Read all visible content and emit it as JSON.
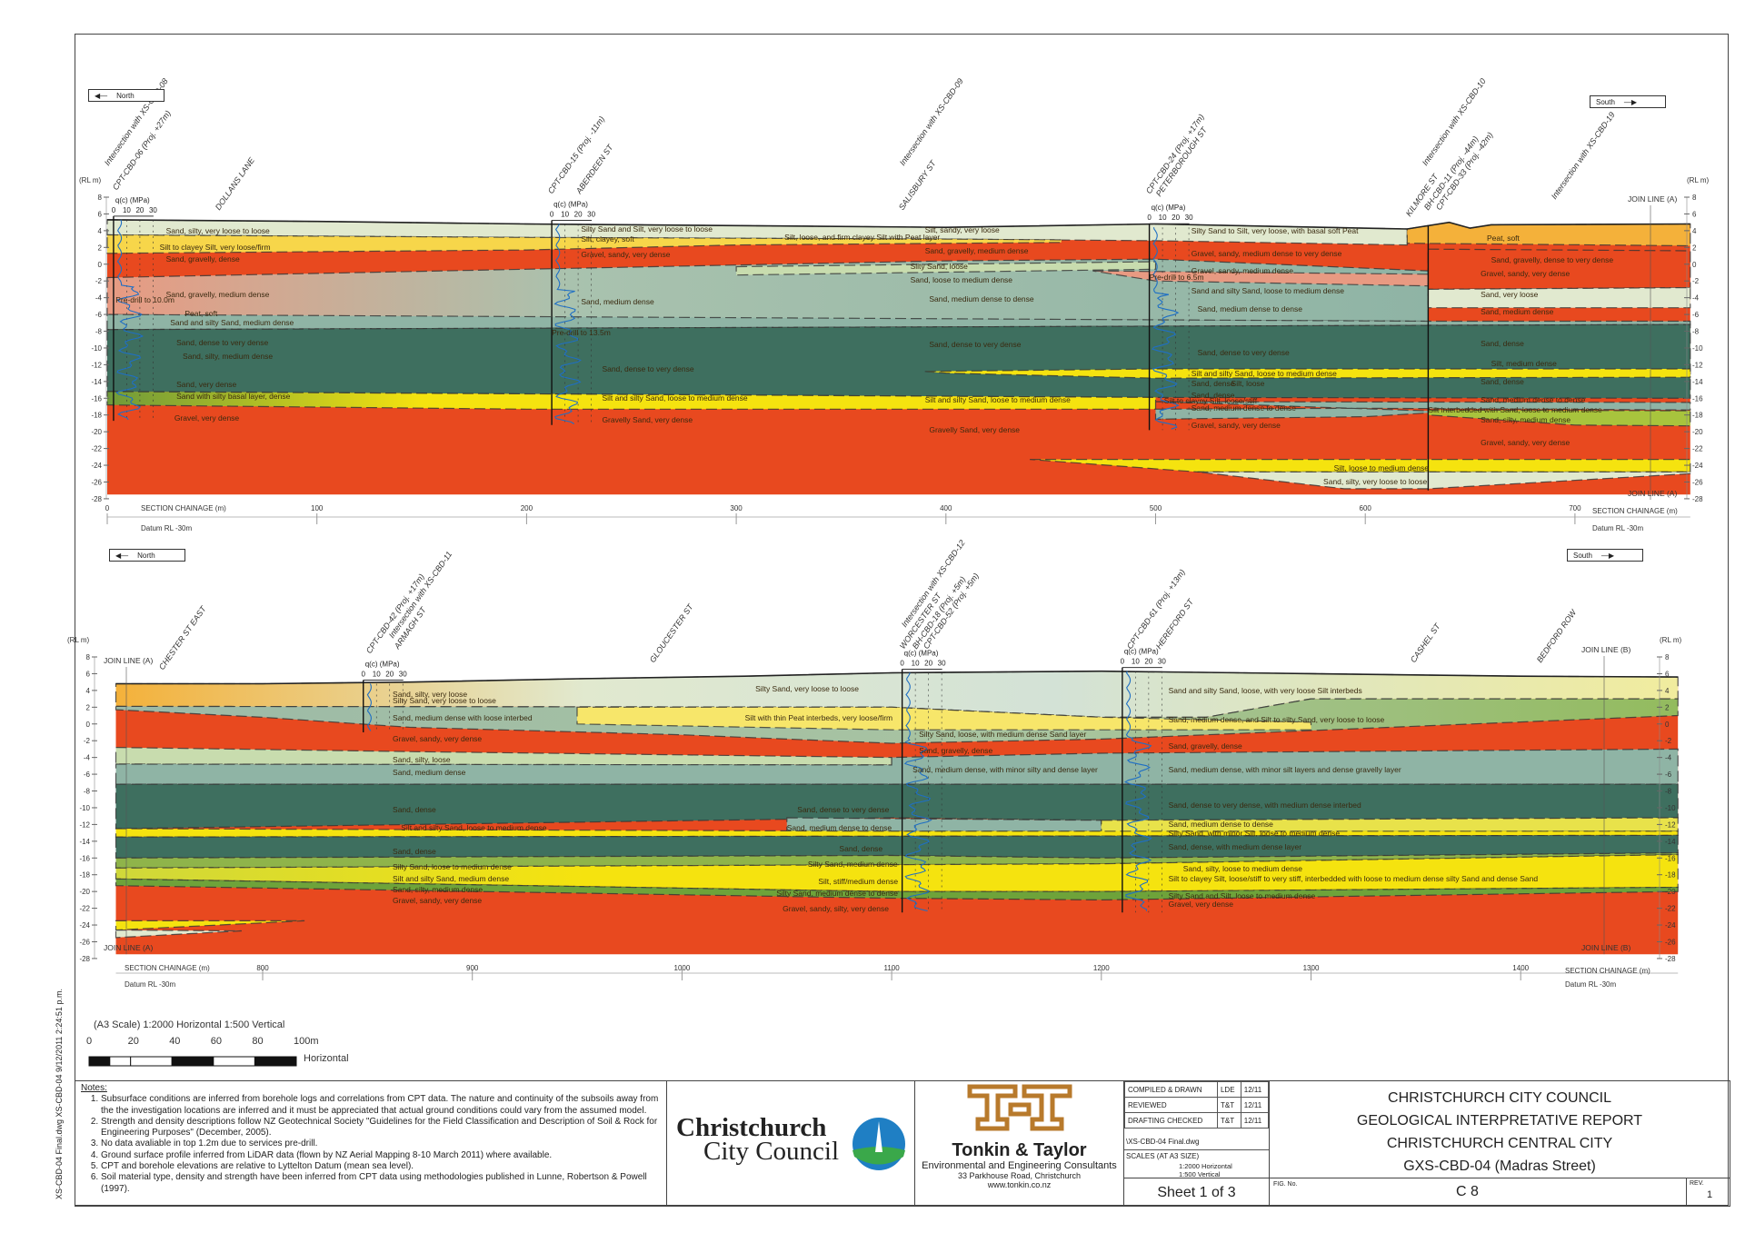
{
  "drawing_file_stamp": "XS-CBD-04 Final.dwg XS-CBD-04 9/12/2011 2:24:51 p.m.",
  "colors": {
    "gravel": "#e8491f",
    "pale_sand": "#e1e9cf",
    "peat": "#f4b13a",
    "silt_yellow": "#f5e30f",
    "silt_light": "#f7d64a",
    "teal_medium": "#8fb4a5",
    "teal_dense": "#3e6f5f",
    "green": "#8fb44a",
    "cpt_trace": "#1f6fc4"
  },
  "direction": {
    "north": "North",
    "south": "South"
  },
  "axis": {
    "rl_label": "(RL m)",
    "rl_ticks": [
      "8",
      "6",
      "4",
      "2",
      "0",
      "-2",
      "-4",
      "-6",
      "-8",
      "-10",
      "-12",
      "-14",
      "-16",
      "-18",
      "-20",
      "-22",
      "-24",
      "-26",
      "-28"
    ],
    "chainage_label": "SECTION CHAINAGE (m)",
    "datum": "Datum RL -30m",
    "qc_label": "q(c) (MPa)",
    "qc_ticks": [
      "0",
      "10",
      "20",
      "30"
    ]
  },
  "sections": [
    {
      "chainage_ticks": [
        "0",
        "100",
        "200",
        "300",
        "400",
        "500",
        "600",
        "700"
      ],
      "annotations": [
        "Intersection with XS-CBD-08",
        "CPT-CBD-06 (Proj. +27m)",
        "DOLLANS LANE",
        "CPT-CBD-15 (Proj. -11m)",
        "ABERDEEN ST",
        "Intersection with XS-CBD-09",
        "SALISBURY ST",
        "CPT-CBD-24 (Proj. +17m)",
        "PETERBOROUGH ST",
        "Intersection with XS-CBD-10",
        "KILMORE ST",
        "BH-CBD-11 (Proj. -44m)",
        "CPT-CBD-33 (Proj. -42m)",
        "Intersection with XS-CBD-19"
      ],
      "join_lines": [
        "JOIN LINE (A)",
        "JOIN LINE (A)"
      ],
      "labels": [
        "Sand, silty, very loose to loose",
        "Silt to clayey Silt, very loose/firm",
        "Sand, gravelly, dense",
        "Sand, gravelly, medium dense",
        "Pre-drill to 10.0m",
        "Peat, soft",
        "Sand and silty Sand, medium dense",
        "Sand, dense to very dense",
        "Sand, silty, medium dense",
        "Sand, very dense",
        "Sand with silty basal layer, dense",
        "Gravel, very dense",
        "Silty Sand and Silt, very loose to loose",
        "Silt, clayey, soft",
        "Silt, loose, and firm clayey Silt with Peat layer",
        "Gravel, sandy, very dense",
        "Sand, medium dense",
        "Pre-drill to 13.5m",
        "Sand, dense to very dense",
        "Silt and silty Sand, loose to medium dense",
        "Gravelly Sand, very dense",
        "Silt, sandy, very loose",
        "Sand, gravelly, medium dense",
        "Silty Sand, loose",
        "Sand, loose to medium dense",
        "Sand, medium dense to dense",
        "Sand, dense to very dense",
        "Silt and silty Sand, loose to medium dense",
        "Gravelly Sand, very dense",
        "Silty Sand to Silt, very loose, with basal soft Peat",
        "Gravel, sandy, medium dense to very dense",
        "Pre-drill to 6.5m",
        "Gravel, sandy, medium dense",
        "Sand and silty Sand, loose to medium dense",
        "Sand, medium dense to dense",
        "Sand, dense to very dense",
        "Silt and silty Sand, loose to medium dense",
        "Sand, dense",
        "Silt, loose",
        "Sand, dense",
        "Silt to clayey Silt, loose/stiff",
        "Sand, medium dense to dense",
        "Gravel, sandy, very dense",
        "Peat, soft",
        "Sand, gravelly, dense to very dense",
        "Gravel, sandy, very dense",
        "Sand, very loose",
        "Sand, medium dense",
        "Sand, dense",
        "Silt, medium dense",
        "Sand, dense",
        "Sand, medium dense to dense",
        "Silt interbedded with Sand, loose to medium dense",
        "Sand, silty, medium dense",
        "Gravel, sandy, very dense",
        "Silt, loose to medium dense",
        "Sand, silty, very loose to loose"
      ]
    },
    {
      "chainage_ticks": [
        "800",
        "900",
        "1000",
        "1100",
        "1200",
        "1300",
        "1400"
      ],
      "annotations": [
        "CHESTER ST EAST",
        "CPT-CBD-42 (Proj. +17m)",
        "Intersection with XS-CBD-11",
        "ARMAGH ST",
        "GLOUCESTER ST",
        "Intersection with XS-CBD-12",
        "WORCESTER ST",
        "BH-CBD-18 (Proj. +5m)",
        "CPT-CBD-52 (Proj. +5m)",
        "CPT-CBD-61 (Proj. +13m)",
        "HEREFORD ST",
        "CASHEL ST",
        "BEDFORD ROW"
      ],
      "join_lines": [
        "JOIN LINE (A)",
        "JOIN LINE (B)",
        "JOIN LINE (A)",
        "JOIN LINE (B)"
      ],
      "labels": [
        "Sand, silty, very loose",
        "Silty Sand, very loose to loose",
        "Sand, medium dense with loose interbed",
        "Silt with thin Peat interbeds, very loose/firm",
        "Silty Sand, very loose to loose",
        "Gravel, sandy, very dense",
        "Sand, silty, loose",
        "Sand, medium dense",
        "Sand, dense",
        "Silt and silty Sand, loose to medium dense",
        "Sand, dense",
        "Silty Sand, loose to medium dense",
        "Silt and silty Sand, medium dense",
        "Sand, silty, medium dense",
        "Gravel, sandy, very dense",
        "Sand, dense to very dense",
        "Sand, medium dense to dense",
        "Sand, dense",
        "Silty Sand, medium dense",
        "Silt, stiff/medium dense",
        "Silty Sand, medium dense to dense",
        "Gravel, sandy, silty, very dense",
        "Silty Sand, loose, with medium dense Sand layer",
        "Sand, gravelly, dense",
        "Sand, medium dense, with minor silty and dense layer",
        "Sand and silty Sand, loose, with very loose Silt interbeds",
        "Sand, medium dense, and Silt to silty Sand, very loose to loose",
        "Sand, gravelly, dense",
        "Sand, medium dense, with minor silt layers and dense gravelly layer",
        "Sand, dense to very dense, with medium dense interbed",
        "Sand, medium dense to dense",
        "Silty Sand, with minor Silt, loose to medium dense",
        "Sand, dense, with medium dense layer",
        "Sand, silty, loose to medium dense",
        "Silt to clayey Silt, loose/stiff to very stiff, interbedded with loose to medium dense silty Sand and dense Sand",
        "Silty Sand and Silt, loose to medium dense",
        "Gravel, very dense"
      ]
    }
  ],
  "scale": {
    "title": "(A3 Scale)   1:2000 Horizontal   1:500 Vertical",
    "ticks": [
      "0",
      "20",
      "40",
      "60",
      "80",
      "100m"
    ],
    "label": "Horizontal"
  },
  "notes": {
    "heading": "Notes:",
    "items": [
      "Subsurface conditions are inferred from borehole logs and correlations from CPT data. The nature and continuity of the subsoils away from the the investigation locations are inferred and it must be appreciated that actual ground conditions could vary from the assumed model.",
      "Strength and density descriptions follow NZ Geotechnical Society \"Guidelines for the Field Classification and Description of Soil & Rock for Engineering Purposes\" (December, 2005).",
      "No data avaliable in top 1.2m due to services pre-drill.",
      "Ground surface profile inferred from LiDAR data (flown by NZ Aerial Mapping 8-10 March 2011) where available.",
      "CPT and borehole elevations are relative to Lyttelton Datum (mean sea level).",
      "Soil material type, density and strength have been inferred from CPT data using methodologies published in Lunne, Robertson & Powell (1997)."
    ]
  },
  "council": {
    "line1": "Christchurch",
    "line2": "City Council"
  },
  "consultant": {
    "logo": "T+T",
    "name": "Tonkin & Taylor",
    "tagline": "Environmental and Engineering Consultants",
    "address": "33 Parkhouse Road, Christchurch",
    "web": "www.tonkin.co.nz"
  },
  "signoff": [
    {
      "role": "COMPILED & DRAWN",
      "by": "LDE",
      "date": "12/11"
    },
    {
      "role": "REVIEWED",
      "by": "T&T",
      "date": "12/11"
    },
    {
      "role": "DRAFTING CHECKED",
      "by": "T&T",
      "date": "12/11"
    }
  ],
  "file": "\\XS-CBD-04 Final.dwg",
  "scales": {
    "heading": "SCALES (AT A3 SIZE)",
    "h": "1:2000 Horizontal",
    "v": "1:500  Vertical"
  },
  "sheet": "Sheet 1 of 3",
  "title": {
    "client": "CHRISTCHURCH CITY COUNCIL",
    "report": "GEOLOGICAL INTERPRETATIVE REPORT",
    "area": "CHRISTCHURCH CENTRAL CITY",
    "section": "GXS-CBD-04 (Madras Street)"
  },
  "fig": {
    "label": "FIG. No.",
    "value": "C 8"
  },
  "rev": {
    "label": "REV.",
    "value": "1"
  }
}
